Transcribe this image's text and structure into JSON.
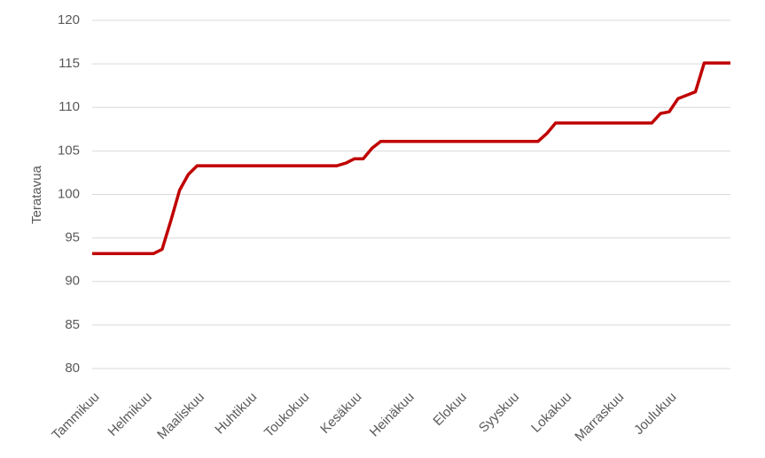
{
  "chart_data": {
    "type": "line",
    "y_label": "Teratavua",
    "categories": [
      "Tammikuu",
      null,
      null,
      null,
      null,
      null,
      "Helmikuu",
      null,
      null,
      null,
      null,
      null,
      "Maaliskuu",
      null,
      null,
      null,
      null,
      null,
      "Huhtikuu",
      null,
      null,
      null,
      null,
      null,
      "Toukokuu",
      null,
      null,
      null,
      null,
      null,
      "Kesäkuu",
      null,
      null,
      null,
      null,
      null,
      "Heinäkuu",
      null,
      null,
      null,
      null,
      null,
      "Elokuu",
      null,
      null,
      null,
      null,
      null,
      "Syyskuu",
      null,
      null,
      null,
      null,
      null,
      "Lokakuu",
      null,
      null,
      null,
      null,
      null,
      "Marraskuu",
      null,
      null,
      null,
      null,
      null,
      "Joulukuu",
      null,
      null,
      null,
      null,
      null,
      null,
      null
    ],
    "series": [
      {
        "color": "#c00000",
        "values": [
          93.2,
          93.2,
          93.2,
          93.2,
          93.2,
          93.2,
          93.2,
          93.2,
          93.7,
          97,
          100.5,
          102.3,
          103.3,
          103.3,
          103.3,
          103.3,
          103.3,
          103.3,
          103.3,
          103.3,
          103.3,
          103.3,
          103.3,
          103.3,
          103.3,
          103.3,
          103.3,
          103.3,
          103.3,
          103.6,
          104.1,
          104.1,
          105.3,
          106.1,
          106.1,
          106.1,
          106.1,
          106.1,
          106.1,
          106.1,
          106.1,
          106.1,
          106.1,
          106.1,
          106.1,
          106.1,
          106.1,
          106.1,
          106.1,
          106.1,
          106.1,
          106.1,
          107,
          108.2,
          108.2,
          108.2,
          108.2,
          108.2,
          108.2,
          108.2,
          108.2,
          108.2,
          108.2,
          108.2,
          108.2,
          109.3,
          109.5,
          111,
          111.4,
          111.8,
          115.1,
          115.1,
          115.1,
          115.1
        ]
      }
    ],
    "ylim": [
      80,
      120
    ],
    "yticks": [
      80,
      85,
      90,
      95,
      100,
      105,
      110,
      115,
      120
    ],
    "grid": true
  }
}
